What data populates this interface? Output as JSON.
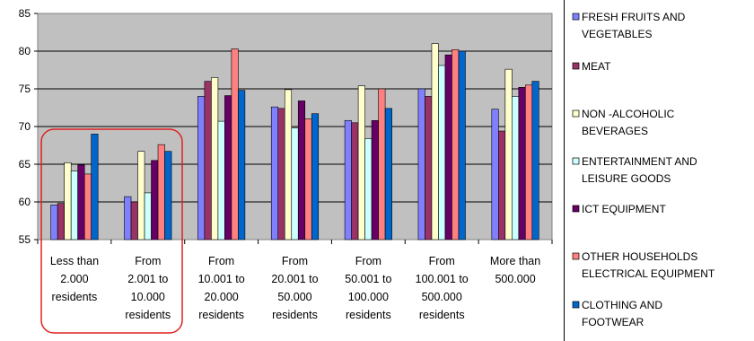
{
  "chart_data": {
    "type": "bar",
    "title": "",
    "xlabel": "",
    "ylabel": "",
    "ylim": [
      55,
      85
    ],
    "yticks": [
      55,
      60,
      65,
      70,
      75,
      80,
      85
    ],
    "grid": true,
    "legend_position": "right",
    "categories": [
      [
        "Less than",
        "2.000",
        "residents"
      ],
      [
        "From",
        "2.001 to",
        "10.000",
        "residents"
      ],
      [
        "From",
        "10.001 to",
        "20.000",
        "residents"
      ],
      [
        "From",
        "20.001 to",
        "50.000",
        "residents"
      ],
      [
        "From",
        "50.001 to",
        "100.000",
        "residents"
      ],
      [
        "From",
        "100.001 to",
        "500.000",
        "residents"
      ],
      [
        "More than",
        "500.000"
      ]
    ],
    "series": [
      {
        "name": [
          "FRESH FRUITS AND",
          "VEGETABLES"
        ],
        "color": "#8080ff",
        "values": [
          59.6,
          60.7,
          74.0,
          72.6,
          70.8,
          75.0,
          72.3
        ]
      },
      {
        "name": [
          "MEAT"
        ],
        "color": "#993366",
        "values": [
          59.8,
          60.0,
          76.0,
          72.4,
          70.5,
          74.0,
          69.4
        ]
      },
      {
        "name": [
          "NON -ALCOHOLIC",
          "BEVERAGES"
        ],
        "color": "#ffffcc",
        "values": [
          65.2,
          66.7,
          76.5,
          74.9,
          75.4,
          81.0,
          77.6
        ]
      },
      {
        "name": [
          "ENTERTAINMENT AND",
          "LEISURE GOODS"
        ],
        "color": "#ccffff",
        "values": [
          64.1,
          61.2,
          70.7,
          69.8,
          68.4,
          78.1,
          74.0
        ]
      },
      {
        "name": [
          "ICT EQUIPMENT"
        ],
        "color": "#660066",
        "values": [
          64.9,
          65.5,
          74.1,
          73.4,
          70.8,
          79.5,
          75.2
        ]
      },
      {
        "name": [
          "OTHER HOUSEHOLDS",
          "ELECTRICAL EQUIPMENT"
        ],
        "color": "#ff8080",
        "values": [
          63.7,
          67.6,
          80.3,
          71.0,
          75.0,
          80.2,
          75.5
        ]
      },
      {
        "name": [
          "CLOTHING AND",
          "FOOTWEAR"
        ],
        "color": "#0066cc",
        "values": [
          69.0,
          66.7,
          74.8,
          71.7,
          72.4,
          80.0,
          76.0
        ]
      }
    ]
  }
}
